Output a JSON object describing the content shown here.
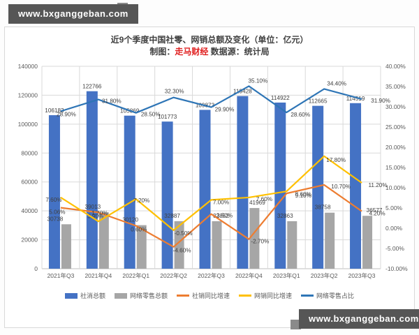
{
  "watermark": {
    "text": "www.bxganggeban.com"
  },
  "colors": {
    "bar_blue": "#4472C4",
    "bar_gray": "#A6A6A6",
    "line_orange": "#ED7D31",
    "line_yellow": "#FFC000",
    "line_blue": "#2E75B6",
    "brand_red": "#E02020",
    "grid": "#d9d9d9",
    "axis_text": "#595959",
    "label_text": "#404040"
  },
  "chart_data": {
    "type": "bar",
    "combo": "clustered bars + 3 lines, dual axis",
    "title": "近9个季度中国社零、网销总额及变化（单位：亿元）",
    "subtitle_prefix": "制图：",
    "subtitle_brand": "走马财经",
    "subtitle_suffix": "  数据源：统计局",
    "categories": [
      "2021年Q3",
      "2021年Q4",
      "2022年Q1",
      "2022年Q2",
      "2022年Q3",
      "2022年Q4",
      "2023年Q1",
      "2023年Q2",
      "2023年Q3"
    ],
    "series": [
      {
        "name": "社消总额",
        "type": "bar",
        "axis": "left",
        "color": "#4472C4",
        "values": [
          106183,
          122766,
          105869,
          101773,
          109873,
          119428,
          114922,
          112665,
          114519
        ],
        "labels": [
          "106183",
          "122766",
          "105869",
          "101773",
          "109873",
          "119428",
          "114922",
          "112665",
          "114519"
        ]
      },
      {
        "name": "网络零售总额",
        "type": "bar",
        "axis": "left",
        "color": "#A6A6A6",
        "values": [
          30738,
          39013,
          30120,
          32887,
          32852,
          41969,
          32863,
          38758,
          36577
        ],
        "labels": [
          "30738",
          "39013",
          "30120",
          "32887",
          "32852",
          "41969",
          "32863",
          "38758",
          "36577"
        ]
      },
      {
        "name": "社销同比增速",
        "type": "line",
        "axis": "right",
        "color": "#ED7D31",
        "values": [
          5.06,
          3.9,
          0.6,
          -4.6,
          3.5,
          -2.7,
          8.6,
          10.7,
          4.2
        ],
        "labels": [
          "5.06%",
          "3.90%",
          "0.60%",
          "-4.60%",
          "3.50%",
          "-2.70%",
          "8.60%",
          "10.70%",
          "4.20%"
        ]
      },
      {
        "name": "网销同比增速",
        "type": "line",
        "axis": "right",
        "color": "#FFC000",
        "values": [
          7.6,
          1.7,
          7.2,
          -0.5,
          7.0,
          7.6,
          9.1,
          17.8,
          11.2
        ],
        "labels": [
          "7.60%",
          "1.70%",
          "7.20%",
          "-0.50%",
          "7.00%",
          "7.60%",
          "9.10%",
          "17.80%",
          "11.20%"
        ]
      },
      {
        "name": "网络零售占比",
        "type": "line",
        "axis": "right",
        "color": "#2E75B6",
        "values": [
          28.9,
          31.8,
          28.5,
          32.3,
          29.9,
          35.1,
          28.6,
          34.4,
          31.9
        ],
        "labels": [
          "28.90%",
          "31.80%",
          "28.50%",
          "32.30%",
          "29.90%",
          "35.10%",
          "28.60%",
          "34.40%",
          "31.90%"
        ]
      }
    ],
    "left_axis": {
      "min": 0,
      "max": 140000,
      "step": 20000,
      "ticks": [
        "0",
        "20000",
        "40000",
        "60000",
        "80000",
        "100000",
        "120000",
        "140000"
      ]
    },
    "right_axis": {
      "min": -10,
      "max": 40,
      "step": 5,
      "ticks": [
        "-10.00%",
        "-5.00%",
        "0.00%",
        "5.00%",
        "10.00%",
        "15.00%",
        "20.00%",
        "25.00%",
        "30.00%",
        "35.00%",
        "40.00%"
      ]
    },
    "grid": "horizontal + vertical category separators",
    "legend_position": "bottom"
  }
}
